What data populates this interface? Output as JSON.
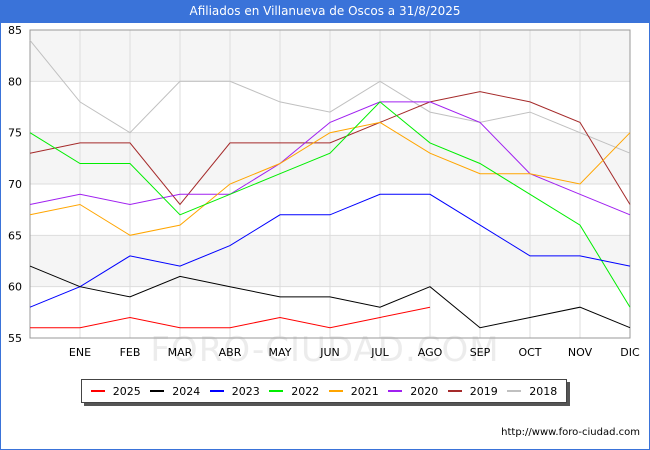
{
  "title": "Afiliados en Villanueva de Oscos a 31/8/2025",
  "footer": "http://www.foro-ciudad.com",
  "watermark": "FORO-CIUDAD.COM",
  "chart_data": {
    "type": "line",
    "categories": [
      "",
      "ENE",
      "FEB",
      "MAR",
      "ABR",
      "MAY",
      "JUN",
      "JUL",
      "AGO",
      "SEP",
      "OCT",
      "NOV",
      "DIC"
    ],
    "ylim": [
      55,
      85
    ],
    "yticks": [
      55,
      60,
      65,
      70,
      75,
      80,
      85
    ],
    "grid": true,
    "legend_position": "bottom",
    "series": [
      {
        "name": "2025",
        "color": "#ff0000",
        "values": [
          56,
          56,
          57,
          56,
          56,
          57,
          56,
          57,
          58,
          null,
          null,
          null,
          null
        ]
      },
      {
        "name": "2024",
        "color": "#000000",
        "values": [
          62,
          60,
          59,
          61,
          60,
          59,
          59,
          58,
          60,
          56,
          57,
          58,
          56
        ]
      },
      {
        "name": "2023",
        "color": "#0000ff",
        "values": [
          58,
          60,
          63,
          62,
          64,
          67,
          67,
          69,
          69,
          66,
          63,
          63,
          62
        ]
      },
      {
        "name": "2022",
        "color": "#00ee00",
        "values": [
          75,
          72,
          72,
          67,
          69,
          71,
          73,
          78,
          74,
          72,
          69,
          66,
          58
        ]
      },
      {
        "name": "2021",
        "color": "#ffa500",
        "values": [
          67,
          68,
          65,
          66,
          70,
          72,
          75,
          76,
          73,
          71,
          71,
          70,
          75
        ]
      },
      {
        "name": "2020",
        "color": "#a020f0",
        "values": [
          68,
          69,
          68,
          69,
          69,
          72,
          76,
          78,
          78,
          76,
          71,
          69,
          67
        ]
      },
      {
        "name": "2019",
        "color": "#a52a2a",
        "values": [
          73,
          74,
          74,
          68,
          74,
          74,
          74,
          76,
          78,
          79,
          78,
          76,
          68
        ]
      },
      {
        "name": "2018",
        "color": "#c0c0c0",
        "values": [
          84,
          78,
          75,
          80,
          80,
          78,
          77,
          80,
          77,
          76,
          77,
          75,
          73
        ]
      }
    ]
  }
}
